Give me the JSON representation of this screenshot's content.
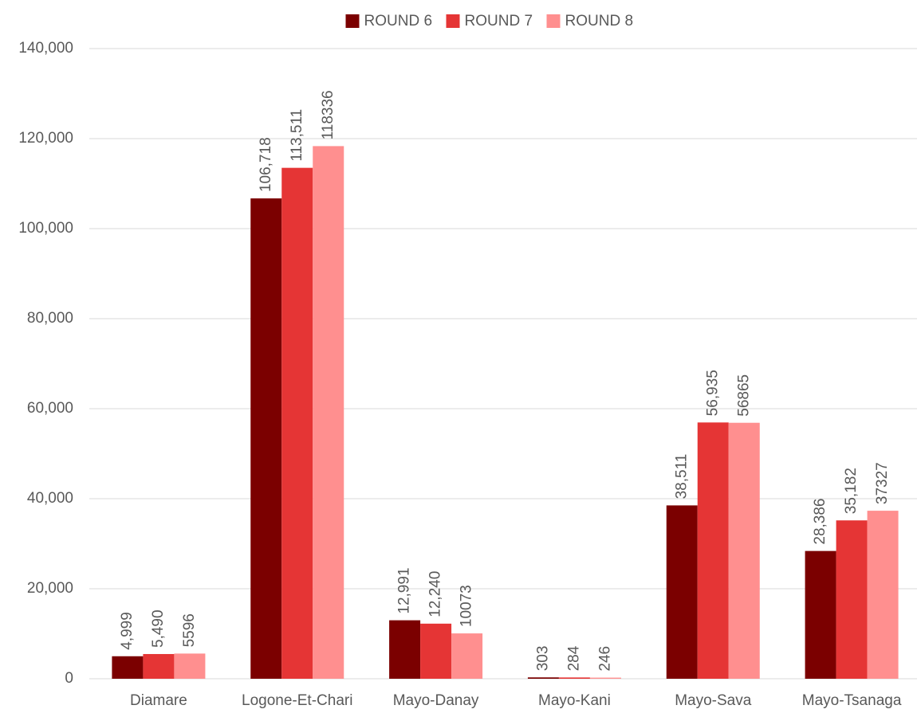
{
  "chart_data": {
    "type": "bar",
    "categories": [
      "Diamare",
      "Logone-Et-Chari",
      "Mayo-Danay",
      "Mayo-Kani",
      "Mayo-Sava",
      "Mayo-Tsanaga"
    ],
    "series": [
      {
        "name": "ROUND 6",
        "color": "#7b0000",
        "values": [
          4999,
          106718,
          12991,
          303,
          38511,
          28386
        ],
        "value_labels": [
          "4,999",
          "106,718",
          "12,991",
          "303",
          "38,511",
          "28,386"
        ]
      },
      {
        "name": "ROUND 7",
        "color": "#e53535",
        "values": [
          5490,
          113511,
          12240,
          284,
          56935,
          35182
        ],
        "value_labels": [
          "5,490",
          "113,511",
          "12,240",
          "284",
          "56,935",
          "35,182"
        ]
      },
      {
        "name": "ROUND 8",
        "color": "#ff8f8f",
        "values": [
          5596,
          118336,
          10073,
          246,
          56865,
          37327
        ]
      }
    ],
    "ylim": [
      0,
      140000
    ],
    "yticks": [
      0,
      {
        "value": 20000,
        "label": "20,000"
      },
      {
        "value": 40000,
        "label": "40,000"
      },
      {
        "value": 60000,
        "label": "60,000"
      },
      {
        "value": 80000,
        "label": "80,000"
      },
      {
        "value": 100000,
        "label": "100,000"
      },
      {
        "value": 120000,
        "label": "120,000"
      },
      {
        "value": 140000,
        "label": "140,000"
      }
    ],
    "grid": true,
    "legend": "top"
  }
}
